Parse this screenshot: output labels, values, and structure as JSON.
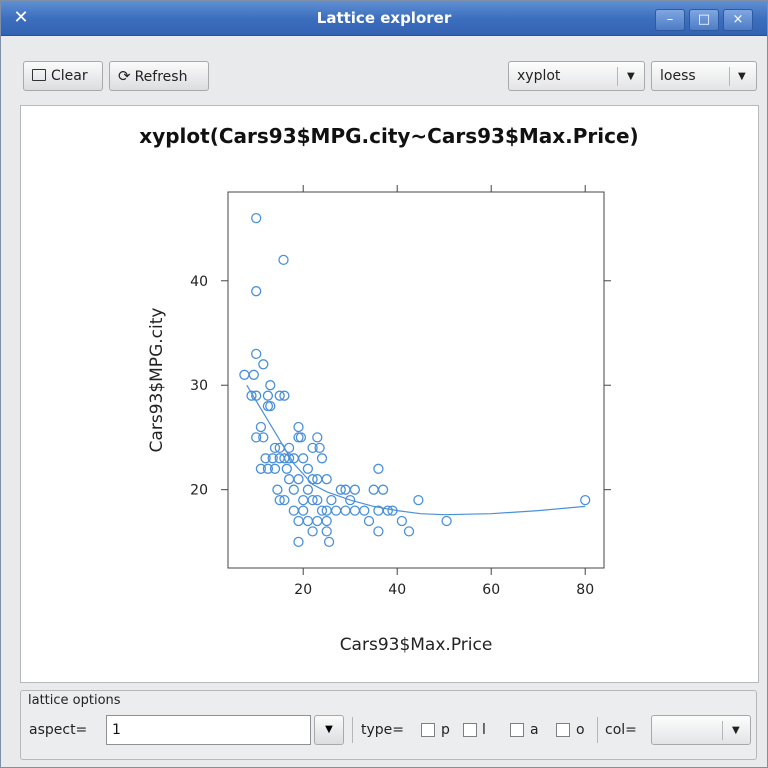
{
  "window": {
    "title": "Lattice explorer",
    "icon": "x-icon",
    "minimize": "–",
    "maximize": "□",
    "close": "×"
  },
  "toolbar": {
    "clear_label": "Clear",
    "refresh_label": "Refresh",
    "plot_type": "xyplot",
    "smoother": "loess"
  },
  "chart_data": {
    "type": "scatter",
    "title": "xyplot(Cars93$MPG.city~Cars93$Max.Price)",
    "xlabel": "Cars93$Max.Price",
    "ylabel": "Cars93$MPG.city",
    "xlim": [
      4,
      84
    ],
    "ylim": [
      12.5,
      48.5
    ],
    "x_ticks": [
      20,
      40,
      60,
      80
    ],
    "y_ticks": [
      20,
      30,
      40
    ],
    "grid": false,
    "point_color": "#4a90d9",
    "line_color": "#4a90d9",
    "points": [
      [
        10,
        46
      ],
      [
        15.8,
        42
      ],
      [
        10,
        39
      ],
      [
        10,
        33
      ],
      [
        11.5,
        32
      ],
      [
        7.5,
        31
      ],
      [
        9.5,
        31
      ],
      [
        13,
        30
      ],
      [
        9,
        29
      ],
      [
        10,
        29
      ],
      [
        12.5,
        29
      ],
      [
        15,
        29
      ],
      [
        16,
        29
      ],
      [
        13,
        28
      ],
      [
        12.5,
        28
      ],
      [
        11,
        26
      ],
      [
        11.5,
        25
      ],
      [
        10,
        25
      ],
      [
        19,
        26
      ],
      [
        19,
        25
      ],
      [
        19.5,
        25
      ],
      [
        23,
        25
      ],
      [
        14,
        24
      ],
      [
        15,
        24
      ],
      [
        17,
        24
      ],
      [
        22,
        24
      ],
      [
        23.5,
        24
      ],
      [
        12,
        23
      ],
      [
        13.5,
        23
      ],
      [
        15,
        23
      ],
      [
        16,
        23
      ],
      [
        17,
        23
      ],
      [
        18,
        23
      ],
      [
        20,
        23
      ],
      [
        24,
        23
      ],
      [
        11,
        22
      ],
      [
        12.5,
        22
      ],
      [
        14,
        22
      ],
      [
        16.5,
        22
      ],
      [
        21,
        22
      ],
      [
        36,
        22
      ],
      [
        17,
        21
      ],
      [
        19,
        21
      ],
      [
        22,
        21
      ],
      [
        23,
        21
      ],
      [
        25,
        21
      ],
      [
        14.5,
        20
      ],
      [
        18,
        20
      ],
      [
        21,
        20
      ],
      [
        28,
        20
      ],
      [
        29,
        20
      ],
      [
        31,
        20
      ],
      [
        35,
        20
      ],
      [
        37,
        20
      ],
      [
        15,
        19
      ],
      [
        16,
        19
      ],
      [
        20,
        19
      ],
      [
        22,
        19
      ],
      [
        23,
        19
      ],
      [
        26,
        19
      ],
      [
        30,
        19
      ],
      [
        44.5,
        19
      ],
      [
        80,
        19
      ],
      [
        18,
        18
      ],
      [
        20,
        18
      ],
      [
        24,
        18
      ],
      [
        25,
        18
      ],
      [
        27,
        18
      ],
      [
        29,
        18
      ],
      [
        31,
        18
      ],
      [
        33,
        18
      ],
      [
        36,
        18
      ],
      [
        38,
        18
      ],
      [
        39,
        18
      ],
      [
        19,
        17
      ],
      [
        21,
        17
      ],
      [
        23,
        17
      ],
      [
        25,
        17
      ],
      [
        34,
        17
      ],
      [
        41,
        17
      ],
      [
        50.5,
        17
      ],
      [
        22,
        16
      ],
      [
        25,
        16
      ],
      [
        36,
        16
      ],
      [
        42.5,
        16
      ],
      [
        19,
        15
      ],
      [
        25.5,
        15
      ]
    ],
    "loess": [
      [
        8,
        30
      ],
      [
        10,
        28.5
      ],
      [
        12,
        27
      ],
      [
        14,
        25.5
      ],
      [
        16,
        24
      ],
      [
        18,
        22.5
      ],
      [
        20,
        21.5
      ],
      [
        22,
        20.5
      ],
      [
        25,
        19.8
      ],
      [
        30,
        19
      ],
      [
        35,
        18.4
      ],
      [
        40,
        18
      ],
      [
        45,
        17.7
      ],
      [
        50,
        17.6
      ],
      [
        60,
        17.7
      ],
      [
        70,
        18
      ],
      [
        80,
        18.4
      ]
    ]
  },
  "options": {
    "group_label": "lattice options",
    "aspect_label": "aspect=",
    "aspect_value": "1",
    "type_label": "type=",
    "type_options": [
      "p",
      "l",
      "a",
      "o"
    ],
    "col_label": "col="
  }
}
